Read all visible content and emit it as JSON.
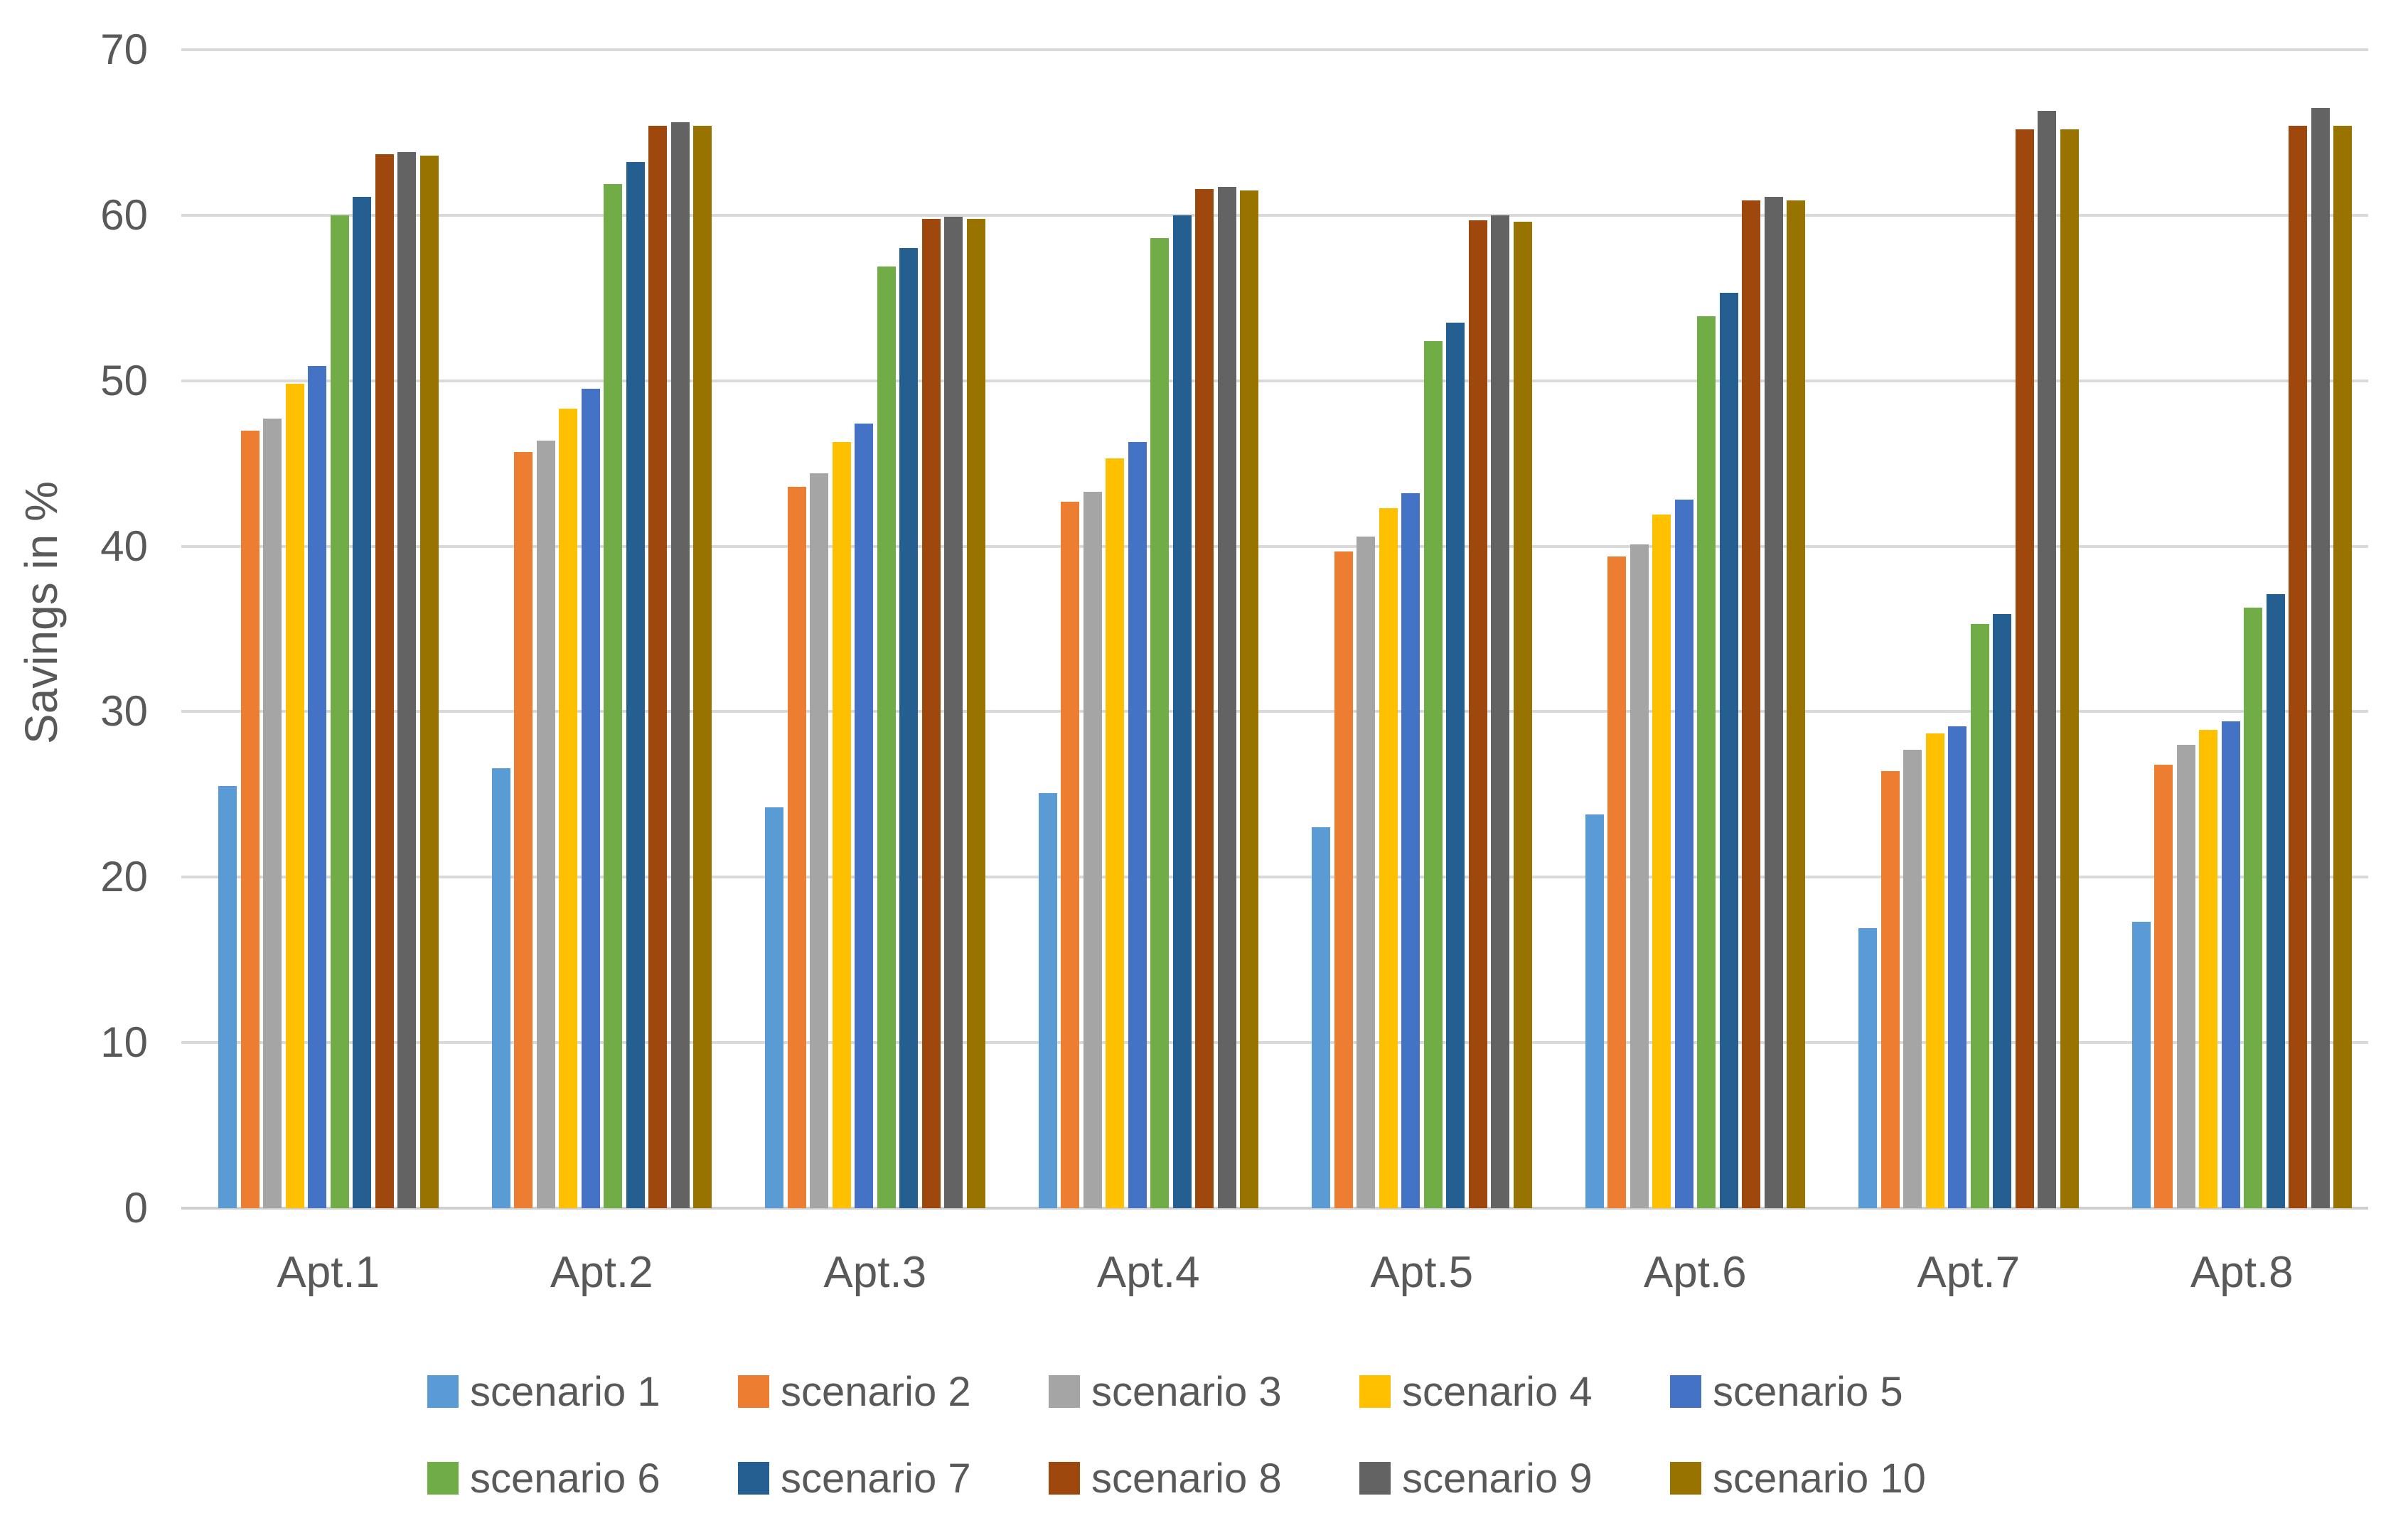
{
  "chart_data": {
    "type": "bar",
    "title": "",
    "xlabel": "",
    "ylabel": "Savings in %",
    "ylim": [
      0,
      70
    ],
    "yticks": [
      0,
      10,
      20,
      30,
      40,
      50,
      60,
      70
    ],
    "grid": true,
    "legend_position": "bottom",
    "legend_rows": 2,
    "categories": [
      "Apt.1",
      "Apt.2",
      "Apt.3",
      "Apt.4",
      "Apt.5",
      "Apt.6",
      "Apt.7",
      "Apt.8"
    ],
    "series": [
      {
        "name": "scenario 1",
        "color": "#5B9BD5",
        "values": [
          25.5,
          26.6,
          24.2,
          25.1,
          23.0,
          23.8,
          16.9,
          17.3
        ]
      },
      {
        "name": "scenario 2",
        "color": "#ED7D31",
        "values": [
          47.0,
          45.7,
          43.6,
          42.7,
          39.7,
          39.4,
          26.4,
          26.8
        ]
      },
      {
        "name": "scenario 3",
        "color": "#A5A5A5",
        "values": [
          47.7,
          46.4,
          44.4,
          43.3,
          40.6,
          40.1,
          27.7,
          28.0
        ]
      },
      {
        "name": "scenario 4",
        "color": "#FFC000",
        "values": [
          49.8,
          48.3,
          46.3,
          45.3,
          42.3,
          41.9,
          28.7,
          28.9
        ]
      },
      {
        "name": "scenario 5",
        "color": "#4472C4",
        "values": [
          50.9,
          49.5,
          47.4,
          46.3,
          43.2,
          42.8,
          29.1,
          29.4
        ]
      },
      {
        "name": "scenario 6",
        "color": "#70AD47",
        "values": [
          60.0,
          61.9,
          56.9,
          58.6,
          52.4,
          53.9,
          35.3,
          36.3
        ]
      },
      {
        "name": "scenario 7",
        "color": "#255E91",
        "values": [
          61.1,
          63.2,
          58.0,
          60.0,
          53.5,
          55.3,
          35.9,
          37.1
        ]
      },
      {
        "name": "scenario 8",
        "color": "#9E480E",
        "values": [
          63.7,
          65.4,
          59.8,
          61.6,
          59.7,
          60.9,
          65.2,
          65.4
        ]
      },
      {
        "name": "scenario 9",
        "color": "#636363",
        "values": [
          63.8,
          65.6,
          59.9,
          61.7,
          60.0,
          61.1,
          66.3,
          66.5
        ]
      },
      {
        "name": "scenario 10",
        "color": "#997300",
        "values": [
          63.6,
          65.4,
          59.8,
          61.5,
          59.6,
          60.9,
          65.2,
          65.4
        ]
      }
    ],
    "gridline_color": "#D9D9D9",
    "axis_text_color": "#595959"
  }
}
